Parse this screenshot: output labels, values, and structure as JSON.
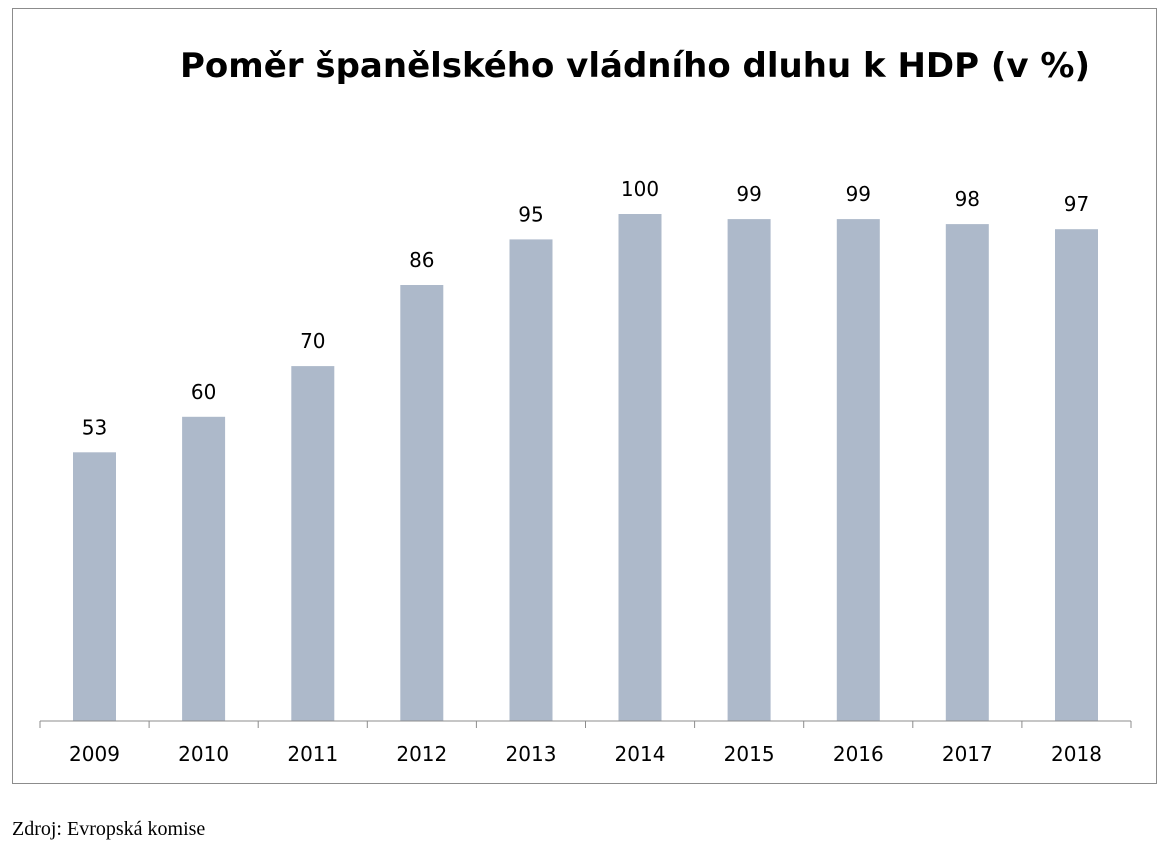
{
  "chart_data": {
    "type": "bar",
    "title": "Poměr španělského vládního dluhu k HDP (v %)",
    "categories": [
      "2009",
      "2010",
      "2011",
      "2012",
      "2013",
      "2014",
      "2015",
      "2016",
      "2017",
      "2018"
    ],
    "values": [
      53,
      60,
      70,
      86,
      95,
      100,
      99,
      99,
      98,
      97
    ],
    "xlabel": "",
    "ylabel": "",
    "ylim": [
      0,
      100
    ],
    "grid": false,
    "legend": "none",
    "bar_color": "#adb9ca"
  },
  "source": {
    "text": "Zdroj: Evropská komise"
  }
}
